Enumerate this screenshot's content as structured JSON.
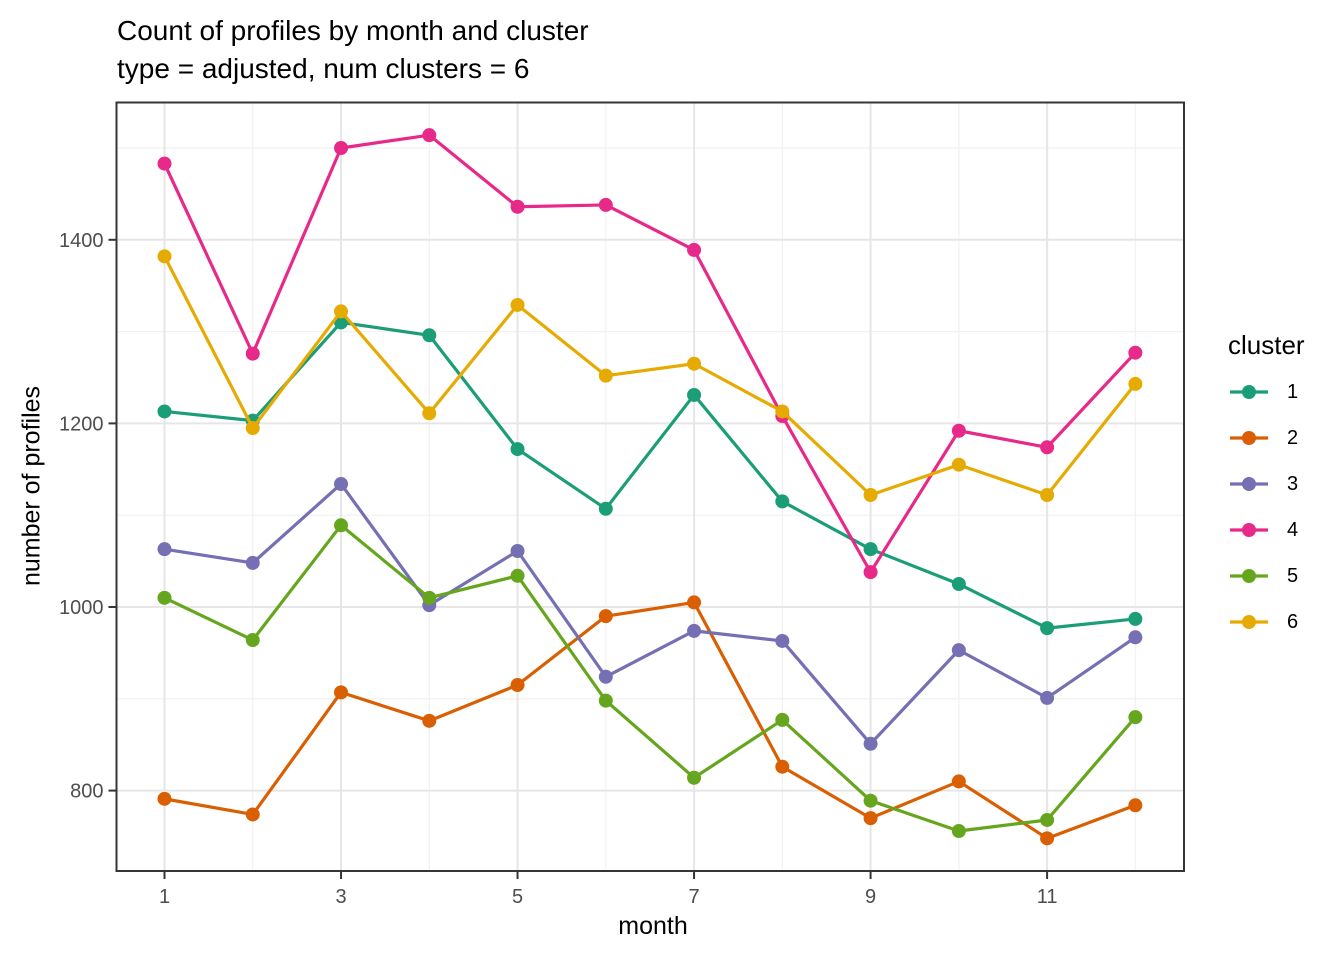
{
  "chart_data": {
    "type": "line",
    "title": "Count of profiles by month and cluster",
    "subtitle": "type = adjusted, num clusters = 6",
    "xlabel": "month",
    "ylabel": "number of profiles",
    "legend_title": "cluster",
    "legend_position": "right",
    "x": [
      1,
      2,
      3,
      4,
      5,
      6,
      7,
      8,
      9,
      10,
      11,
      12
    ],
    "x_ticks": [
      1,
      3,
      5,
      7,
      9,
      11
    ],
    "x_minor_breaks": [
      2,
      4,
      6,
      8,
      10,
      12
    ],
    "y_ticks": [
      800,
      1000,
      1200,
      1400
    ],
    "y_minor_breaks": [
      700,
      900,
      1100,
      1300,
      1500
    ],
    "xlim": [
      0.45,
      12.55
    ],
    "ylim": [
      712,
      1551
    ],
    "grid": "major and minor, light grey on white, boxed panel",
    "series": [
      {
        "name": "1",
        "color": "#1B9E77",
        "values": [
          1213,
          1203,
          1310,
          1296,
          1172,
          1107,
          1231,
          1115,
          1063,
          1025,
          977,
          987
        ]
      },
      {
        "name": "2",
        "color": "#D95F02",
        "values": [
          791,
          774,
          907,
          876,
          915,
          990,
          1005,
          826,
          770,
          810,
          748,
          784
        ]
      },
      {
        "name": "3",
        "color": "#7570B3",
        "values": [
          1063,
          1048,
          1134,
          1002,
          1061,
          924,
          974,
          963,
          851,
          953,
          901,
          967
        ]
      },
      {
        "name": "4",
        "color": "#E7298A",
        "values": [
          1483,
          1276,
          1500,
          1514,
          1436,
          1438,
          1389,
          1208,
          1038,
          1192,
          1174,
          1277
        ]
      },
      {
        "name": "5",
        "color": "#66A61E",
        "values": [
          1010,
          964,
          1089,
          1010,
          1034,
          898,
          814,
          877,
          789,
          756,
          768,
          880
        ]
      },
      {
        "name": "6",
        "color": "#E6AB02",
        "values": [
          1382,
          1195,
          1322,
          1211,
          1329,
          1252,
          1265,
          1213,
          1122,
          1155,
          1122,
          1243
        ]
      }
    ],
    "style": {
      "tick_label_color": "#4D4D4D",
      "axis_title_color": "#000000",
      "grid_major_color": "#E6E6E6",
      "grid_minor_color": "#F1F1F1",
      "panel_border_color": "#353535",
      "background": "#FFFFFF"
    }
  }
}
